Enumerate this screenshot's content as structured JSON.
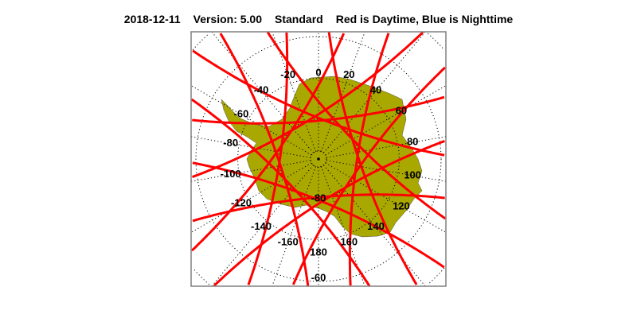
{
  "header": {
    "date": "2018-12-11",
    "version": "Version: 5.00",
    "mode": "Standard",
    "legend": "Red is Daytime, Blue is Nighttime"
  },
  "map": {
    "projection": "south polar stereographic",
    "colors": {
      "land": "#A9A800",
      "day_track": "#FF0000",
      "night_track": "#0000FF",
      "grid": "#000000",
      "frame": "#808080"
    },
    "longitude_labels": [
      "0",
      "20",
      "40",
      "60",
      "80",
      "100",
      "120",
      "140",
      "160",
      "180",
      "-160",
      "-140",
      "-120",
      "-100",
      "-80",
      "-60",
      "-40",
      "-20"
    ],
    "latitude_labels": [
      "-80",
      "-60"
    ]
  }
}
